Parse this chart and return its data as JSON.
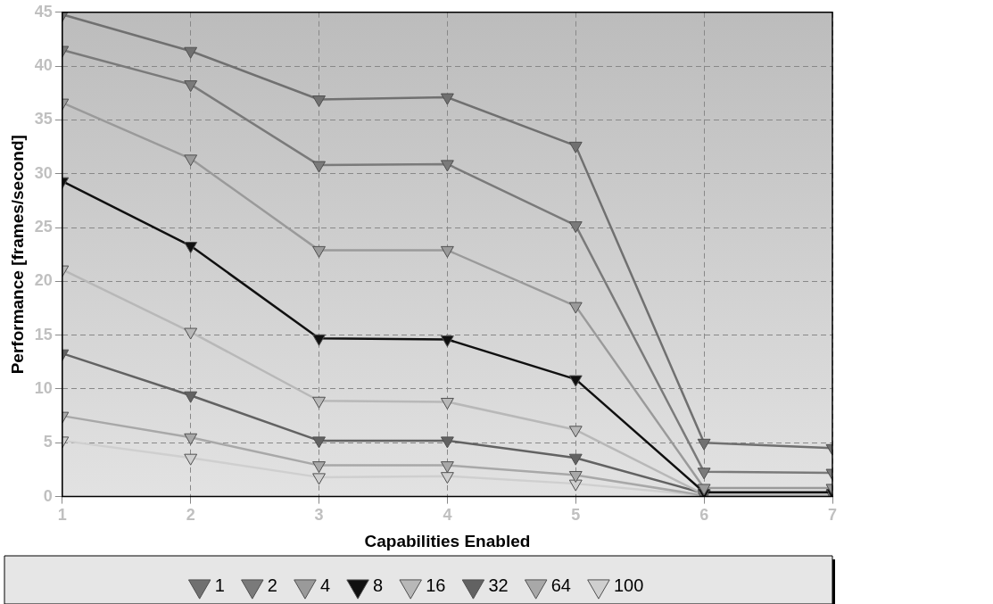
{
  "chart_data": {
    "type": "line",
    "xlabel": "Capabilities Enabled",
    "ylabel": "Performance [frames/second]",
    "x": [
      1,
      2,
      3,
      4,
      5,
      6,
      7
    ],
    "xlim": [
      1,
      7
    ],
    "xticks": [
      1,
      2,
      3,
      4,
      5,
      6,
      7
    ],
    "ylim": [
      0,
      45
    ],
    "yticks": [
      0,
      5,
      10,
      15,
      20,
      25,
      30,
      35,
      40,
      45
    ],
    "grid": true,
    "legend": "bottom",
    "marker": "triangle",
    "line_style": "solid",
    "series": [
      {
        "name": "1",
        "color": "#707070",
        "values": [
          44.8,
          41.4,
          36.9,
          37.1,
          32.6,
          5.0,
          4.5
        ]
      },
      {
        "name": "2",
        "color": "#7a7a7a",
        "values": [
          41.5,
          38.3,
          30.8,
          30.9,
          25.2,
          2.3,
          2.2
        ]
      },
      {
        "name": "4",
        "color": "#9a9a9a",
        "values": [
          36.6,
          31.4,
          22.9,
          22.9,
          17.7,
          0.8,
          0.8
        ]
      },
      {
        "name": "8",
        "color": "#101010",
        "values": [
          29.3,
          23.3,
          14.7,
          14.6,
          10.9,
          0.4,
          0.4
        ]
      },
      {
        "name": "16",
        "color": "#b8b8b8",
        "values": [
          21.1,
          15.3,
          8.9,
          8.8,
          6.2,
          0.2,
          0.2
        ]
      },
      {
        "name": "32",
        "color": "#626262",
        "values": [
          13.3,
          9.4,
          5.2,
          5.2,
          3.6,
          0.3,
          0.3
        ]
      },
      {
        "name": "64",
        "color": "#a8a8a8",
        "values": [
          7.5,
          5.5,
          2.9,
          2.9,
          2.0,
          0.1,
          0.1
        ]
      },
      {
        "name": "100",
        "color": "#cfcfcf",
        "values": [
          5.2,
          3.6,
          1.8,
          1.9,
          1.2,
          0.1,
          0.1
        ]
      }
    ]
  }
}
